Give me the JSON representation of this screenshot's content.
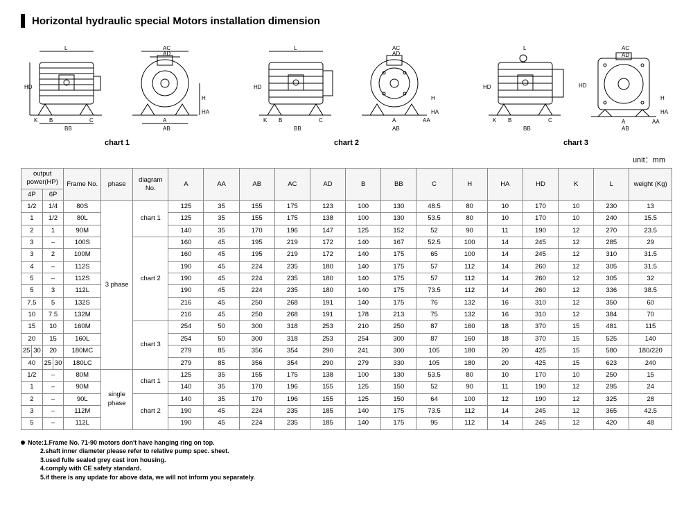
{
  "title": "Horizontal hydraulic special Motors installation dimension",
  "unit_label": "unit：mm",
  "chart_labels": [
    "chart 1",
    "chart 2",
    "chart 3"
  ],
  "diagram_dim_labels": [
    "L",
    "HD",
    "K",
    "B",
    "C",
    "BB",
    "AC",
    "AD",
    "H",
    "HA",
    "A",
    "AA",
    "AB"
  ],
  "header": {
    "output_power": "output power(HP)",
    "p4": "4P",
    "p6": "6P",
    "frame": "Frame No.",
    "phase": "phase",
    "diagram": "diagram No.",
    "cols": [
      "A",
      "AA",
      "AB",
      "AC",
      "AD",
      "B",
      "BB",
      "C",
      "H",
      "HA",
      "HD",
      "K",
      "L"
    ],
    "weight": "weight (Kg)"
  },
  "phases": {
    "three": "3 phase",
    "single": "single phase"
  },
  "diagram_groups": {
    "c1": "chart 1",
    "c2": "chart 2",
    "c3": "chart 3"
  },
  "rows": [
    {
      "p4": "1/2",
      "p6": "1/4",
      "frame": "80S",
      "dims": [
        "125",
        "35",
        "155",
        "175",
        "123",
        "100",
        "130",
        "48.5",
        "80",
        "10",
        "170",
        "10",
        "230"
      ],
      "wt": "13"
    },
    {
      "p4": "1",
      "p6": "1/2",
      "frame": "80L",
      "dims": [
        "125",
        "35",
        "155",
        "175",
        "138",
        "100",
        "130",
        "53.5",
        "80",
        "10",
        "170",
        "10",
        "240"
      ],
      "wt": "15.5"
    },
    {
      "p4": "2",
      "p6": "1",
      "frame": "90M",
      "dims": [
        "140",
        "35",
        "170",
        "196",
        "147",
        "125",
        "152",
        "52",
        "90",
        "11",
        "190",
        "12",
        "270"
      ],
      "wt": "23.5"
    },
    {
      "p4": "3",
      "p6": "–",
      "frame": "100S",
      "dims": [
        "160",
        "45",
        "195",
        "219",
        "172",
        "140",
        "167",
        "52.5",
        "100",
        "14",
        "245",
        "12",
        "285"
      ],
      "wt": "29"
    },
    {
      "p4": "3",
      "p6": "2",
      "frame": "100M",
      "dims": [
        "160",
        "45",
        "195",
        "219",
        "172",
        "140",
        "175",
        "65",
        "100",
        "14",
        "245",
        "12",
        "310"
      ],
      "wt": "31.5"
    },
    {
      "p4": "4",
      "p6": "–",
      "frame": "112S",
      "dims": [
        "190",
        "45",
        "224",
        "235",
        "180",
        "140",
        "175",
        "57",
        "112",
        "14",
        "260",
        "12",
        "305"
      ],
      "wt": "31.5"
    },
    {
      "p4": "5",
      "p6": "–",
      "frame": "112S",
      "dims": [
        "190",
        "45",
        "224",
        "235",
        "180",
        "140",
        "175",
        "57",
        "112",
        "14",
        "260",
        "12",
        "305"
      ],
      "wt": "32"
    },
    {
      "p4": "5",
      "p6": "3",
      "frame": "112L",
      "dims": [
        "190",
        "45",
        "224",
        "235",
        "180",
        "140",
        "175",
        "73.5",
        "112",
        "14",
        "260",
        "12",
        "336"
      ],
      "wt": "38.5"
    },
    {
      "p4": "7.5",
      "p6": "5",
      "frame": "132S",
      "dims": [
        "216",
        "45",
        "250",
        "268",
        "191",
        "140",
        "175",
        "76",
        "132",
        "16",
        "310",
        "12",
        "350"
      ],
      "wt": "60"
    },
    {
      "p4": "10",
      "p6": "7.5",
      "frame": "132M",
      "dims": [
        "216",
        "45",
        "250",
        "268",
        "191",
        "178",
        "213",
        "75",
        "132",
        "16",
        "310",
        "12",
        "384"
      ],
      "wt": "70"
    },
    {
      "p4": "15",
      "p6": "10",
      "frame": "160M",
      "dims": [
        "254",
        "50",
        "300",
        "318",
        "253",
        "210",
        "250",
        "87",
        "160",
        "18",
        "370",
        "15",
        "481"
      ],
      "wt": "115"
    },
    {
      "p4": "20",
      "p6": "15",
      "frame": "160L",
      "dims": [
        "254",
        "50",
        "300",
        "318",
        "253",
        "254",
        "300",
        "87",
        "160",
        "18",
        "370",
        "15",
        "525"
      ],
      "wt": "140"
    },
    {
      "p4a": "25",
      "p4b": "30",
      "p6": "20",
      "frame": "180MC",
      "dims": [
        "279",
        "85",
        "356",
        "354",
        "290",
        "241",
        "300",
        "105",
        "180",
        "20",
        "425",
        "15",
        "580"
      ],
      "wt": "180/220"
    },
    {
      "p4": "40",
      "p6a": "25",
      "p6b": "30",
      "frame": "180LC",
      "dims": [
        "279",
        "85",
        "356",
        "354",
        "290",
        "279",
        "330",
        "105",
        "180",
        "20",
        "425",
        "15",
        "623"
      ],
      "wt": "240"
    },
    {
      "p4": "1/2",
      "p6": "–",
      "frame": "80M",
      "dims": [
        "125",
        "35",
        "155",
        "175",
        "138",
        "100",
        "130",
        "53.5",
        "80",
        "10",
        "170",
        "10",
        "250"
      ],
      "wt": "15"
    },
    {
      "p4": "1",
      "p6": "–",
      "frame": "90M",
      "dims": [
        "140",
        "35",
        "170",
        "196",
        "155",
        "125",
        "150",
        "52",
        "90",
        "11",
        "190",
        "12",
        "295"
      ],
      "wt": "24"
    },
    {
      "p4": "2",
      "p6": "–",
      "frame": "90L",
      "dims": [
        "140",
        "35",
        "170",
        "196",
        "155",
        "125",
        "150",
        "64",
        "100",
        "12",
        "190",
        "12",
        "325"
      ],
      "wt": "28"
    },
    {
      "p4": "3",
      "p6": "–",
      "frame": "112M",
      "dims": [
        "190",
        "45",
        "224",
        "235",
        "185",
        "140",
        "175",
        "73.5",
        "112",
        "14",
        "245",
        "12",
        "365"
      ],
      "wt": "42.5"
    },
    {
      "p4": "5",
      "p6": "–",
      "frame": "112L",
      "dims": [
        "190",
        "45",
        "224",
        "235",
        "185",
        "140",
        "175",
        "95",
        "112",
        "14",
        "245",
        "12",
        "420"
      ],
      "wt": "48"
    }
  ],
  "notes": [
    "Note:1.Frame No. 71-90 motors don't have hanging ring on top.",
    "2.shaft inner diameter please refer to relative pump spec. sheet.",
    "3.used fulle sealed grey cast iron housing.",
    "4.comply with CE safety standard.",
    "5.if there is any update for above data, we will not inform you separately."
  ]
}
